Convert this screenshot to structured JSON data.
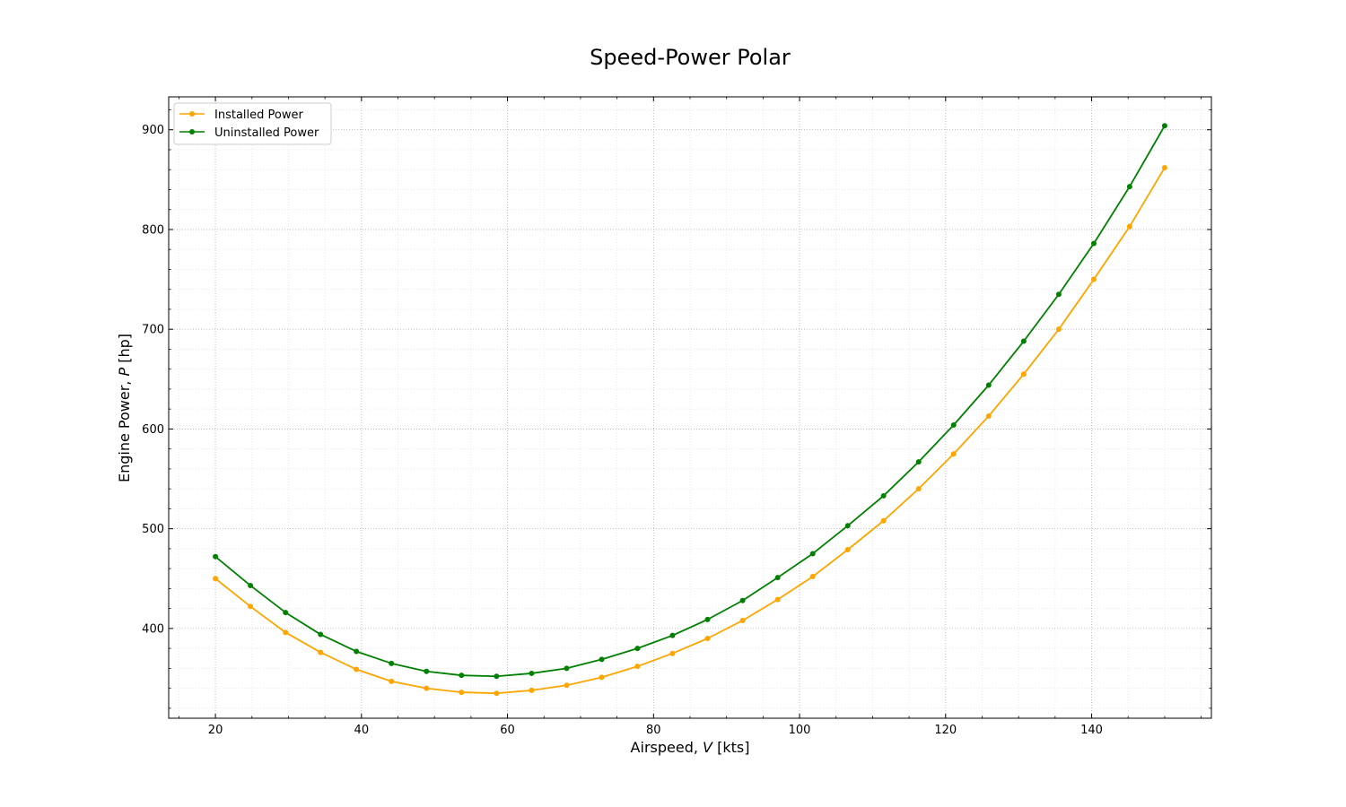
{
  "chart_data": {
    "type": "line",
    "title": "Speed-Power Polar",
    "xlabel_prefix": "Airspeed, ",
    "xlabel_var": "V",
    "xlabel_suffix": " [kts]",
    "ylabel_prefix": "Engine Power, ",
    "ylabel_var": "P",
    "ylabel_suffix": " [hp]",
    "xlim": [
      13.6,
      156.4
    ],
    "ylim": [
      310,
      933
    ],
    "x_ticks": [
      20,
      40,
      60,
      80,
      100,
      120,
      140
    ],
    "y_ticks": [
      400,
      500,
      600,
      700,
      800,
      900
    ],
    "x_tick_labels": [
      "20",
      "40",
      "60",
      "80",
      "100",
      "120",
      "140"
    ],
    "y_tick_labels": [
      "400",
      "500",
      "600",
      "700",
      "800",
      "900"
    ],
    "grid": true,
    "minor_grid": true,
    "legend_position": "top-left",
    "x": [
      20.0,
      24.8,
      29.6,
      34.4,
      39.3,
      44.1,
      48.9,
      53.7,
      58.5,
      63.3,
      68.1,
      72.9,
      77.8,
      82.6,
      87.4,
      92.2,
      97.0,
      101.8,
      106.6,
      111.5,
      116.3,
      121.1,
      125.9,
      130.7,
      135.5,
      140.3,
      145.2,
      150.0
    ],
    "series": [
      {
        "name": "Installed Power",
        "color": "#ffa500",
        "values": [
          450,
          422,
          396,
          376,
          359,
          347,
          340,
          336,
          335,
          338,
          343,
          351,
          362,
          375,
          390,
          408,
          429,
          452,
          479,
          508,
          540,
          575,
          613,
          655,
          700,
          750,
          803,
          862
        ]
      },
      {
        "name": "Uninstalled Power",
        "color": "#008000",
        "values": [
          472,
          443,
          416,
          394,
          377,
          365,
          357,
          353,
          352,
          355,
          360,
          369,
          380,
          393,
          409,
          428,
          451,
          475,
          503,
          533,
          567,
          604,
          644,
          688,
          735,
          786,
          843,
          904
        ]
      }
    ]
  }
}
